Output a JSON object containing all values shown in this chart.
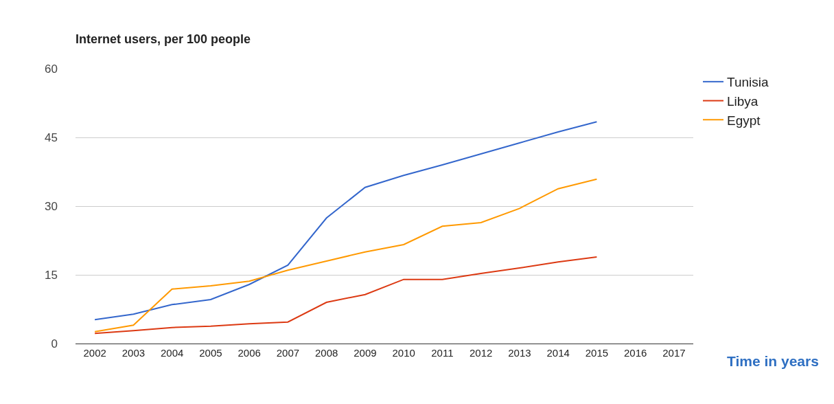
{
  "chart_data": {
    "type": "line",
    "title": "Internet users, per 100 people",
    "x": [
      2002,
      2003,
      2004,
      2005,
      2006,
      2007,
      2008,
      2009,
      2010,
      2011,
      2012,
      2013,
      2014,
      2015
    ],
    "series": [
      {
        "name": "Tunisia",
        "color": "#3366cc",
        "values": [
          5.2,
          6.4,
          8.5,
          9.6,
          12.9,
          17.1,
          27.4,
          34.1,
          36.7,
          39,
          41.4,
          43.8,
          46.2,
          48.4
        ]
      },
      {
        "name": "Libya",
        "color": "#dc3912",
        "values": [
          2.2,
          2.8,
          3.5,
          3.8,
          4.3,
          4.7,
          9,
          10.7,
          14,
          14,
          15.3,
          16.5,
          17.8,
          18.9
        ]
      },
      {
        "name": "Egypt",
        "color": "#ff9900",
        "values": [
          2.6,
          4,
          11.9,
          12.6,
          13.6,
          16,
          18,
          20,
          21.6,
          25.6,
          26.4,
          29.5,
          33.8,
          35.9
        ]
      }
    ],
    "xlim": [
      2001.5,
      2017.5
    ],
    "xticks": [
      2002,
      2003,
      2004,
      2005,
      2006,
      2007,
      2008,
      2009,
      2010,
      2011,
      2012,
      2013,
      2014,
      2015,
      2016,
      2017
    ],
    "ylim": [
      0,
      60
    ],
    "yticks": [
      0,
      15,
      30,
      45,
      60
    ],
    "grid": "y",
    "legend": "top right",
    "marker": "none",
    "line_style": "solid",
    "annotations": [
      "Time in years"
    ]
  }
}
